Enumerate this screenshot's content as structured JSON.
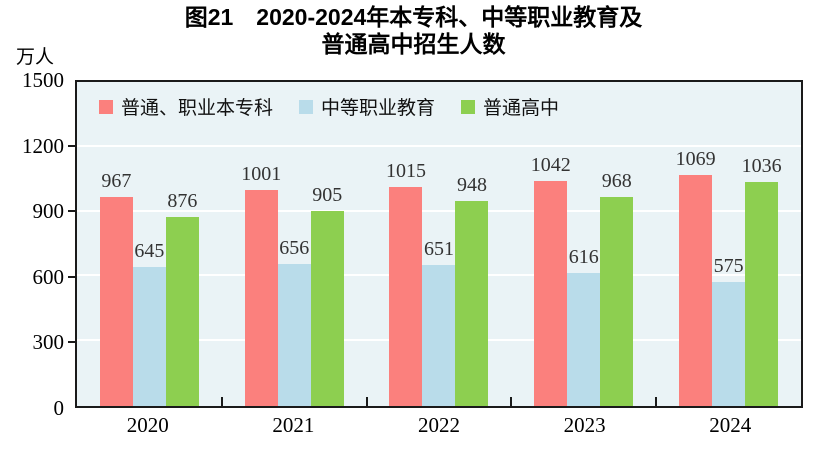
{
  "chart_data": {
    "type": "bar",
    "title_line1": "图21　2020-2024年本专科、中等职业教育及",
    "title_line2": "普通高中招生人数",
    "unit_label": "万人",
    "categories": [
      "2020",
      "2021",
      "2022",
      "2023",
      "2024"
    ],
    "series": [
      {
        "name": "普通、职业本专科",
        "color": "#fb807d",
        "values": [
          967,
          1001,
          1015,
          1042,
          1069
        ]
      },
      {
        "name": "中等职业教育",
        "color": "#b9dcea",
        "values": [
          645,
          656,
          651,
          616,
          575
        ]
      },
      {
        "name": "普通高中",
        "color": "#8dcf50",
        "values": [
          876,
          905,
          948,
          968,
          1036
        ]
      }
    ],
    "ylim": [
      0,
      1500
    ],
    "yticks": [
      0,
      300,
      600,
      900,
      1200,
      1500
    ],
    "gridline_values": [
      300,
      600,
      900,
      1200
    ],
    "grid": true,
    "legend_position": "top-left-inside",
    "plot_background": "#eaf3f6",
    "gridline_color": "#ffffff",
    "axis_color": "#1a1a1a"
  }
}
